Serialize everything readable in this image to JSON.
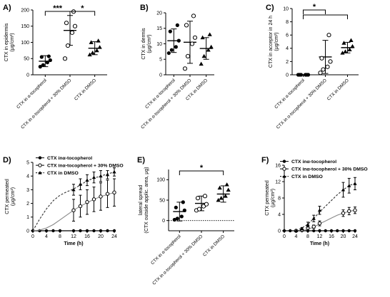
{
  "figure": {
    "panel_labels": [
      "A)",
      "B)",
      "C)",
      "D)",
      "E)",
      "F)"
    ]
  },
  "chart_data": [
    {
      "panel": "A)",
      "type": "scatter",
      "ylabel_main": "CTX in epidermis",
      "ylabel_unit": "(μg/cm²)",
      "ylim": [
        0,
        200
      ],
      "yticks": [
        0,
        50,
        100,
        150,
        200
      ],
      "categories": [
        "CTX in α-tocopherol",
        "CTX in α-tocopherol + 30% DMSO",
        "CTX in DMSO"
      ],
      "means": [
        42,
        137,
        82
      ],
      "sd": [
        17,
        46,
        20
      ],
      "points": [
        [
          25,
          30,
          38,
          45,
          55,
          57
        ],
        [
          50,
          90,
          130,
          150,
          160,
          195
        ],
        [
          62,
          68,
          75,
          85,
          100,
          105
        ]
      ],
      "markers": [
        "circle",
        "open-circle",
        "triangle"
      ],
      "significance": [
        {
          "from": 0,
          "to": 1,
          "label": "***"
        },
        {
          "from": 1,
          "to": 2,
          "label": "*"
        }
      ]
    },
    {
      "panel": "B)",
      "type": "scatter",
      "ylabel_main": "CTX in dermis",
      "ylabel_unit": "(μg/cm²)",
      "ylim": [
        0,
        20
      ],
      "yticks": [
        0,
        5,
        10,
        15,
        20
      ],
      "categories": [
        "CTX in α-tocopherol",
        "CTX in α-tocopherol + 30% DMSO",
        "CTX in DMSO"
      ],
      "means": [
        11,
        10.5,
        8.5
      ],
      "sd": [
        3.8,
        6.8,
        3.5
      ],
      "points": [
        [
          7,
          8,
          9,
          11,
          14,
          16
        ],
        [
          2,
          6,
          10,
          12,
          16,
          19
        ],
        [
          3.5,
          6,
          8,
          9,
          12,
          13
        ]
      ],
      "markers": [
        "circle",
        "open-circle",
        "triangle"
      ],
      "significance": []
    },
    {
      "panel": "C)",
      "type": "scatter",
      "ylabel_main": "CTX in acceptor in 24 h",
      "ylabel_unit": "(μg/cm²)",
      "ylim": [
        0,
        10
      ],
      "yticks": [
        0,
        2,
        4,
        6,
        8,
        10
      ],
      "categories": [
        "CTX in α-tocopherol",
        "CTX in α-tocopherol + 30% DMSO",
        "CTX in DMSO"
      ],
      "means": [
        0,
        2.7,
        4.1
      ],
      "sd": [
        0,
        2.5,
        0.8
      ],
      "points": [
        [
          0,
          0,
          0,
          0,
          0,
          0
        ],
        [
          0.3,
          0.8,
          1.2,
          2.0,
          2.5,
          6.0
        ],
        [
          3.3,
          3.5,
          3.8,
          4.3,
          4.8,
          5.2
        ]
      ],
      "markers": [
        "circle",
        "open-circle",
        "triangle"
      ],
      "significance": [
        {
          "from": 0,
          "to": 1,
          "label": "*"
        },
        {
          "from": 0,
          "to": 2,
          "label": ""
        }
      ]
    },
    {
      "panel": "D)",
      "type": "line",
      "xlabel": "Time (h)",
      "ylabel_main": "CTX permeated",
      "ylabel_unit": "(μg/cm²)",
      "xlim": [
        0,
        24
      ],
      "xticks": [
        0,
        4,
        8,
        12,
        16,
        20,
        24
      ],
      "ylim": [
        0,
        5
      ],
      "yticks": [
        0,
        1,
        2,
        3,
        4,
        5
      ],
      "series": [
        {
          "name": "CTX inα-tocopherol",
          "marker": "filled-circle",
          "style": "solid",
          "x": [
            0,
            2,
            4,
            6,
            8,
            12,
            14,
            16,
            18,
            20,
            22,
            24
          ],
          "y": [
            0,
            0,
            0,
            0,
            0,
            0,
            0,
            0,
            0,
            0,
            0,
            0
          ],
          "err": [
            0,
            0,
            0,
            0,
            0,
            0,
            0,
            0,
            0,
            0,
            0,
            0
          ]
        },
        {
          "name": "CTX inα-tocopherol + 30% DMSO",
          "marker": "open-circle",
          "style": "solid",
          "x": [
            12,
            14,
            16,
            18,
            20,
            22,
            24
          ],
          "y": [
            1.5,
            1.8,
            2.1,
            2.3,
            2.5,
            2.7,
            2.8
          ],
          "err": [
            0.8,
            0.8,
            0.9,
            0.9,
            1.0,
            1.0,
            1.0
          ],
          "curve": {
            "x": [
              0,
              2,
              4,
              6,
              8,
              10,
              12,
              14,
              16,
              18,
              20,
              22,
              24
            ],
            "y": [
              0,
              0.05,
              0.2,
              0.45,
              0.8,
              1.15,
              1.5,
              1.8,
              2.05,
              2.3,
              2.5,
              2.65,
              2.8
            ]
          }
        },
        {
          "name": "CTX in DMSO",
          "marker": "triangle",
          "style": "dashed",
          "x": [
            12,
            14,
            16,
            18,
            20,
            22,
            24
          ],
          "y": [
            3.0,
            3.4,
            3.7,
            3.9,
            4.0,
            4.1,
            4.3
          ],
          "err": [
            0.4,
            0.4,
            0.4,
            0.4,
            0.4,
            0.3,
            0.3
          ],
          "curve": {
            "x": [
              0,
              2,
              4,
              6,
              8,
              10,
              12,
              14,
              16,
              18,
              20,
              22,
              24
            ],
            "y": [
              0,
              0.85,
              1.6,
              2.2,
              2.6,
              2.85,
              3.05,
              3.35,
              3.65,
              3.85,
              4.0,
              4.15,
              4.3
            ]
          }
        }
      ]
    },
    {
      "panel": "E)",
      "type": "scatter",
      "ylabel_main": "lateral spread",
      "ylabel_unit": "(CTX outside applic. area, μg)",
      "ylim": [
        -25,
        125
      ],
      "yticks": [
        0,
        50,
        100
      ],
      "dotted_zero": true,
      "categories": [
        "CTX in α-tocopherol",
        "CTX in α-tocopherol + 30% DMSO",
        "CTX in DMSO"
      ],
      "means": [
        22,
        42,
        65
      ],
      "sd": [
        23,
        18,
        20
      ],
      "points": [
        [
          2,
          5,
          10,
          25,
          32,
          45
        ],
        [
          25,
          28,
          35,
          40,
          55,
          60
        ],
        [
          50,
          55,
          60,
          75,
          80,
          88
        ]
      ],
      "markers": [
        "circle",
        "open-circle",
        "triangle"
      ],
      "significance": [
        {
          "from": 0,
          "to": 2,
          "label": "*"
        }
      ]
    },
    {
      "panel": "F)",
      "type": "line",
      "xlabel": "Time (h)",
      "ylabel_main": "CTX permeated",
      "ylabel_unit": "(μg/cm²)",
      "xlim": [
        0,
        24
      ],
      "xticks": [
        0,
        4,
        8,
        12,
        16,
        20,
        24
      ],
      "ylim": [
        0,
        16
      ],
      "yticks": [
        0,
        4,
        8,
        12,
        16
      ],
      "series": [
        {
          "name": "CTX inα-tocopherol",
          "marker": "filled-circle",
          "style": "solid",
          "x": [
            0,
            2,
            4,
            6,
            8,
            10,
            12,
            14,
            16,
            18,
            20,
            22,
            24
          ],
          "y": [
            0,
            0,
            0,
            0,
            0,
            0,
            0,
            0,
            0,
            0,
            0,
            0,
            0
          ],
          "err": [
            0,
            0,
            0,
            0,
            0,
            0,
            0,
            0,
            0,
            0,
            0,
            0,
            0
          ]
        },
        {
          "name": "CTX inα-tocopherol + 30% DMSO",
          "marker": "open-circle",
          "style": "solid",
          "x": [
            4,
            6,
            8,
            10,
            12,
            20,
            22,
            24
          ],
          "y": [
            0,
            0.2,
            0.7,
            1.0,
            1.8,
            4.3,
            4.8,
            5.0
          ],
          "err": [
            0,
            0.2,
            0.3,
            0.4,
            0.6,
            0.8,
            0.9,
            0.8
          ],
          "curve": {
            "x": [
              6,
              8,
              10,
              12,
              14,
              16,
              18,
              20,
              22,
              24
            ],
            "y": [
              0,
              0.35,
              0.9,
              1.7,
              2.4,
              3.1,
              3.8,
              4.3,
              4.75,
              5.0
            ]
          }
        },
        {
          "name": "CTX in DMSO",
          "marker": "triangle",
          "style": "dashed",
          "x": [
            4,
            6,
            8,
            10,
            12,
            20,
            22,
            24
          ],
          "y": [
            0,
            0.5,
            1.5,
            3.0,
            5.0,
            10.0,
            11.0,
            11.5
          ],
          "err": [
            0,
            0.3,
            0.6,
            0.8,
            1.0,
            1.8,
            1.8,
            1.5
          ],
          "curve": {
            "x": [
              4,
              6,
              8,
              10,
              12,
              14,
              16,
              18,
              20,
              22,
              24
            ],
            "y": [
              0,
              0.7,
              1.6,
              3.0,
              4.6,
              6.0,
              7.4,
              8.8,
              10.0,
              11.0,
              11.6
            ]
          }
        }
      ]
    }
  ]
}
